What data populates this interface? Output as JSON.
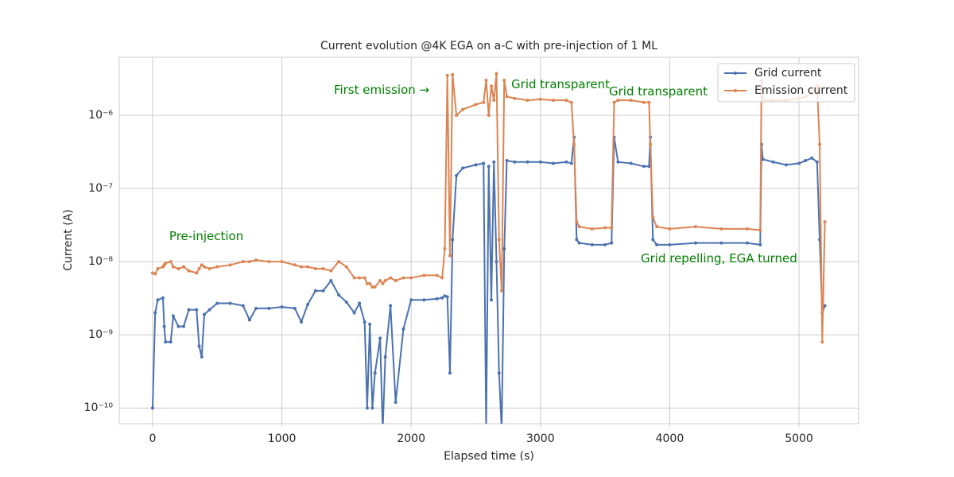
{
  "chart_data": {
    "type": "line",
    "title": "Current evolution @4K EGA on a-C with pre-injection of 1 ML",
    "xlabel": "Elapsed time (s)",
    "ylabel": "Current (A)",
    "xlim": [
      -258,
      5461
    ],
    "ylim": [
      6.1e-11,
      6.2e-06
    ],
    "ylog": true,
    "grid": true,
    "legend": "upper right",
    "xticks": [
      0,
      1000,
      2000,
      3000,
      4000,
      5000
    ],
    "yticks": [
      {
        "value": 1e-10,
        "label": "10⁻¹⁰"
      },
      {
        "value": 1e-09,
        "label": "10⁻⁹"
      },
      {
        "value": 1e-08,
        "label": "10⁻⁸"
      },
      {
        "value": 1e-07,
        "label": "10⁻⁷"
      },
      {
        "value": 1e-06,
        "label": "10⁻⁶"
      }
    ],
    "x": [
      0,
      20,
      40,
      80,
      90,
      100,
      140,
      160,
      200,
      240,
      280,
      340,
      360,
      380,
      400,
      440,
      500,
      600,
      700,
      750,
      800,
      900,
      1000,
      1100,
      1150,
      1200,
      1260,
      1320,
      1380,
      1440,
      1500,
      1560,
      1600,
      1640,
      1660,
      1680,
      1700,
      1720,
      1760,
      1780,
      1800,
      1840,
      1880,
      1940,
      2000,
      2100,
      2200,
      2240,
      2260,
      2280,
      2300,
      2320,
      2350,
      2400,
      2500,
      2560,
      2580,
      2600,
      2620,
      2640,
      2660,
      2680,
      2700,
      2720,
      2740,
      2800,
      2900,
      3000,
      3100,
      3200,
      3240,
      3260,
      3280,
      3300,
      3400,
      3500,
      3550,
      3570,
      3600,
      3700,
      3800,
      3840,
      3850,
      3870,
      3900,
      4000,
      4200,
      4400,
      4600,
      4700,
      4710,
      4720,
      4800,
      4900,
      5000,
      5050,
      5100,
      5140,
      5160,
      5180,
      5200
    ],
    "series": [
      {
        "name": "Grid current",
        "color": "#4c72b0",
        "values": [
          1e-10,
          2e-09,
          3e-09,
          3.2e-09,
          1.3e-09,
          8e-10,
          8e-10,
          1.8e-09,
          1.3e-09,
          1.3e-09,
          2.2e-09,
          2.2e-09,
          7e-10,
          5e-10,
          1.9e-09,
          2.2e-09,
          2.7e-09,
          2.7e-09,
          2.5e-09,
          1.6e-09,
          2.3e-09,
          2.3e-09,
          2.4e-09,
          2.3e-09,
          1.5e-09,
          2.6e-09,
          4e-09,
          4e-09,
          5.5e-09,
          3.5e-09,
          2.8e-09,
          2e-09,
          2.7e-09,
          1.5e-09,
          1e-10,
          1.4e-09,
          1e-10,
          3e-10,
          9e-10,
          5e-11,
          5e-10,
          2.5e-09,
          1.2e-10,
          1.2e-09,
          3e-09,
          3e-09,
          3.1e-09,
          3.2e-09,
          3.4e-09,
          3.3e-09,
          3e-10,
          2e-08,
          1.5e-07,
          1.9e-07,
          2.1e-07,
          2.2e-07,
          5e-11,
          2e-07,
          3e-09,
          2.3e-07,
          1e-08,
          3e-10,
          5e-11,
          1.5e-08,
          2.4e-07,
          2.3e-07,
          2.3e-07,
          2.3e-07,
          2.2e-07,
          2.3e-07,
          2.2e-07,
          5e-07,
          2e-08,
          1.8e-08,
          1.7e-08,
          1.7e-08,
          1.8e-08,
          5e-07,
          2.3e-07,
          2.2e-07,
          2e-07,
          2e-07,
          5e-07,
          2e-08,
          1.7e-08,
          1.7e-08,
          1.8e-08,
          1.8e-08,
          1.8e-08,
          1.7e-08,
          4e-07,
          2.5e-07,
          2.3e-07,
          2.1e-07,
          2.2e-07,
          2.4e-07,
          2.6e-07,
          2.3e-07,
          2e-08,
          2e-09,
          2.5e-09
        ]
      },
      {
        "name": "Emission current",
        "color": "#dd8452",
        "values": [
          7e-09,
          6.8e-09,
          8e-09,
          8.5e-09,
          9e-09,
          9.5e-09,
          1e-08,
          8.5e-09,
          8e-09,
          8.5e-09,
          7.5e-09,
          7e-09,
          8e-09,
          9e-09,
          8.5e-09,
          8e-09,
          8.5e-09,
          9e-09,
          1e-08,
          1e-08,
          1.05e-08,
          1e-08,
          1e-08,
          9e-09,
          8.5e-09,
          8.5e-09,
          8e-09,
          8e-09,
          7.5e-09,
          1e-08,
          8.5e-09,
          6e-09,
          6e-09,
          6e-09,
          5e-09,
          5e-09,
          4.5e-09,
          4.5e-09,
          5.5e-09,
          5e-09,
          5.5e-09,
          6e-09,
          5.5e-09,
          6e-09,
          6e-09,
          6.5e-09,
          6.5e-09,
          6e-09,
          1.5e-08,
          3.5e-06,
          1.2e-08,
          3.6e-06,
          1e-06,
          1.2e-06,
          1.4e-06,
          1.5e-06,
          3e-06,
          1e-06,
          2.5e-06,
          1.6e-06,
          3.7e-06,
          2e-08,
          4e-09,
          3e-06,
          1.8e-06,
          1.7e-06,
          1.6e-06,
          1.65e-06,
          1.6e-06,
          1.6e-06,
          1.5e-06,
          4e-07,
          3.5e-08,
          3e-08,
          2.8e-08,
          2.9e-08,
          2.9e-08,
          1.5e-06,
          1.6e-06,
          1.6e-06,
          1.5e-06,
          1.5e-06,
          4e-07,
          4e-08,
          3e-08,
          2.8e-08,
          3e-08,
          2.8e-08,
          2.8e-08,
          2.7e-08,
          3e-06,
          1.6e-06,
          1.6e-06,
          1.6e-06,
          1.7e-06,
          1.8e-06,
          2e-06,
          2.5e-06,
          4e-07,
          8e-10,
          3.5e-08
        ]
      }
    ],
    "annotations": [
      {
        "text": "Pre-injection",
        "x": 129,
        "y": 2.2e-08
      },
      {
        "text": "First emission →",
        "x": 1402,
        "y": 2.2e-06
      },
      {
        "text": "Grid transparent",
        "x": 2774,
        "y": 2.6e-06
      },
      {
        "text": "Grid transparent",
        "x": 3530,
        "y": 2.1e-06
      },
      {
        "text": "Grid repelling, EGA turned",
        "x": 3776,
        "y": 1.1e-08
      }
    ]
  }
}
